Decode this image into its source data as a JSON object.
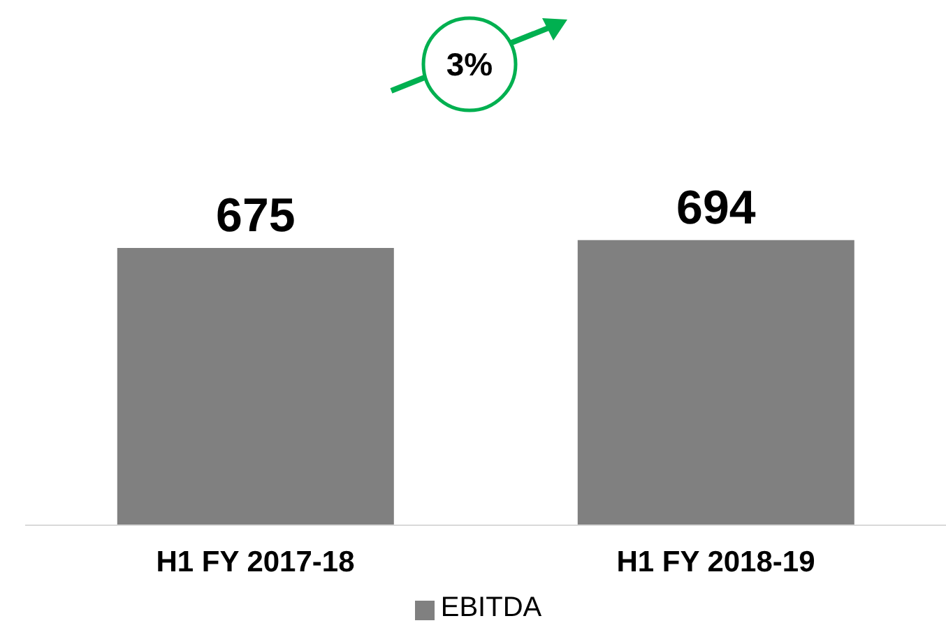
{
  "chart_data": {
    "type": "bar",
    "categories": [
      "H1 FY 2017-18",
      "H1 FY 2018-19"
    ],
    "series": [
      {
        "name": "EBITDA",
        "color": "#808080",
        "values": [
          675,
          694
        ]
      }
    ],
    "annotations": [
      "3%"
    ],
    "data_labels": true,
    "legend": "bottom",
    "grid": false
  }
}
